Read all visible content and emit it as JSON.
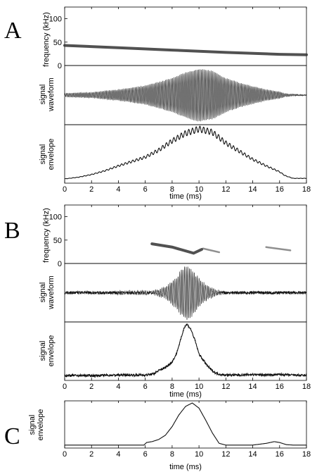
{
  "panels": [
    {
      "letter": "A",
      "xlabel": "time (ms)",
      "freq_ylabel": "frequency (kHz)",
      "wave_ylabel": [
        "signal",
        "waveform"
      ],
      "env_ylabel": [
        "signal",
        "envelope"
      ]
    },
    {
      "letter": "B",
      "xlabel": "time (ms)",
      "freq_ylabel": "frequency (kHz)",
      "wave_ylabel": [
        "signal",
        "waveform"
      ],
      "env_ylabel": [
        "signal",
        "envelope"
      ]
    },
    {
      "letter": "C",
      "xlabel": "time (ms)",
      "env_ylabel": [
        "signal",
        "envelope"
      ]
    }
  ],
  "chart_data": [
    {
      "panel": "A",
      "type": "spectrogram",
      "ylabel": "frequency (kHz)",
      "xlim": [
        0,
        18
      ],
      "ylim": [
        0,
        125
      ],
      "yticks": [
        0,
        50,
        100
      ],
      "xticks": [
        0,
        2,
        4,
        6,
        8,
        10,
        12,
        14,
        16,
        18
      ],
      "series": [
        {
          "x": [
            0,
            4,
            8,
            12,
            16,
            18
          ],
          "y": [
            43,
            38,
            33,
            28,
            24,
            23
          ]
        }
      ]
    },
    {
      "panel": "A",
      "type": "line",
      "ylabel": "signal waveform",
      "xlim": [
        0,
        18
      ],
      "xticks": [
        0,
        2,
        4,
        6,
        8,
        10,
        12,
        14,
        16,
        18
      ],
      "carrier_cycles_per_ms": 3.6,
      "envelope_x": [
        0,
        2,
        4,
        6,
        8,
        9,
        10,
        11,
        12,
        13,
        14,
        15,
        16,
        16.4,
        18
      ],
      "envelope_y": [
        0.06,
        0.1,
        0.2,
        0.34,
        0.62,
        0.82,
        0.96,
        0.88,
        0.62,
        0.45,
        0.32,
        0.2,
        0.12,
        0.05,
        0.0
      ]
    },
    {
      "panel": "A",
      "type": "line",
      "ylabel": "signal envelope",
      "xlim": [
        0,
        18
      ],
      "xticks": [
        0,
        2,
        4,
        6,
        8,
        10,
        12,
        14,
        16,
        18
      ],
      "x": [
        0,
        1,
        2,
        3,
        4,
        5,
        6,
        7,
        8,
        9,
        10,
        11,
        12,
        13,
        14,
        15,
        16,
        16.4,
        17,
        18
      ],
      "y": [
        0.04,
        0.07,
        0.12,
        0.19,
        0.28,
        0.36,
        0.44,
        0.57,
        0.74,
        0.88,
        0.96,
        0.9,
        0.7,
        0.55,
        0.4,
        0.28,
        0.17,
        0.1,
        0.05,
        0.05
      ],
      "ripple_cycles_per_ms": 3.6,
      "ripple_amp": 0.06
    },
    {
      "panel": "B",
      "type": "spectrogram",
      "ylabel": "frequency (kHz)",
      "xlim": [
        0,
        18
      ],
      "ylim": [
        0,
        125
      ],
      "yticks": [
        0,
        50,
        100
      ],
      "xticks": [
        0,
        2,
        4,
        6,
        8,
        10,
        12,
        14,
        16,
        18
      ],
      "series": [
        {
          "x": [
            6.5,
            8.0,
            9.6,
            10.2
          ],
          "y": [
            42,
            35,
            22,
            30
          ]
        },
        {
          "x": [
            10.3,
            11.5
          ],
          "y": [
            32,
            24
          ]
        },
        {
          "x": [
            15.0,
            16.8
          ],
          "y": [
            35,
            28
          ]
        }
      ]
    },
    {
      "panel": "B",
      "type": "line",
      "ylabel": "signal waveform",
      "xlim": [
        0,
        18
      ],
      "xticks": [
        0,
        2,
        4,
        6,
        8,
        10,
        12,
        14,
        16,
        18
      ],
      "carrier_cycles_per_ms": 3.2,
      "noise_level": 0.06,
      "envelope_x": [
        0,
        6.6,
        7.5,
        8.2,
        8.8,
        9.1,
        9.5,
        10,
        10.5,
        11,
        11.4,
        12,
        18
      ],
      "envelope_y": [
        0.0,
        0.04,
        0.18,
        0.5,
        0.88,
        0.98,
        0.82,
        0.5,
        0.28,
        0.14,
        0.06,
        0.0,
        0.0
      ]
    },
    {
      "panel": "B",
      "type": "line",
      "ylabel": "signal envelope",
      "xlim": [
        0,
        18
      ],
      "xticks": [
        0,
        2,
        4,
        6,
        8,
        10,
        12,
        14,
        16,
        18
      ],
      "x": [
        0,
        2,
        4,
        6,
        6.6,
        7,
        7.5,
        8,
        8.3,
        8.6,
        8.9,
        9.1,
        9.4,
        9.7,
        10,
        10.3,
        10.6,
        10.9,
        11.2,
        11.6,
        12,
        13,
        14,
        15,
        16,
        17,
        18
      ],
      "y": [
        0.05,
        0.05,
        0.06,
        0.06,
        0.08,
        0.14,
        0.2,
        0.3,
        0.44,
        0.68,
        0.94,
        1.0,
        0.9,
        0.7,
        0.45,
        0.34,
        0.24,
        0.16,
        0.1,
        0.07,
        0.06,
        0.06,
        0.07,
        0.06,
        0.07,
        0.06,
        0.05
      ],
      "noise_level": 0.02
    },
    {
      "panel": "C",
      "type": "line",
      "ylabel": "signal envelope",
      "xlim": [
        0,
        18
      ],
      "xticks": [
        0,
        2,
        4,
        6,
        8,
        10,
        12,
        14,
        16,
        18
      ],
      "x": [
        0,
        5.9,
        6.1,
        6.5,
        7,
        7.5,
        8,
        8.5,
        9,
        9.5,
        10,
        10.5,
        11,
        11.5,
        12,
        14,
        15,
        15.6,
        16,
        16.5,
        17,
        18
      ],
      "y": [
        0.02,
        0.02,
        0.08,
        0.1,
        0.15,
        0.25,
        0.45,
        0.72,
        0.92,
        1.0,
        0.88,
        0.6,
        0.3,
        0.06,
        0.02,
        0.02,
        0.06,
        0.1,
        0.08,
        0.03,
        0.02,
        0.02
      ]
    }
  ]
}
